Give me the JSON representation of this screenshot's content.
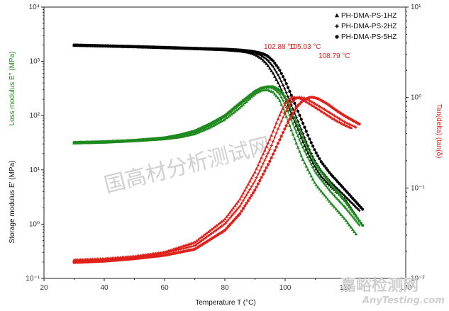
{
  "chart_data": {
    "type": "scatter",
    "xlabel": "Temperature T (°C)",
    "ylabel_left_top": "Loss modulus E'' (MPa)",
    "ylabel_left_bottom": "Storage modulus E' (MPa)",
    "ylabel_right": "Tan(delta) (tan(δ)",
    "xlim": [
      20,
      140
    ],
    "xticks": [
      "20",
      "40",
      "60",
      "80",
      "100",
      "120",
      "140"
    ],
    "ylim_left": [
      0.1,
      10000
    ],
    "ylim_left_log": true,
    "yticks_left": [
      "10⁻¹",
      "10⁰",
      "10¹",
      "10²",
      "10³",
      "10⁴"
    ],
    "ylim_right": [
      0.01,
      10
    ],
    "ylim_right_log": true,
    "yticks_right": [
      "10⁻²",
      "10⁻¹",
      "10⁰",
      "10¹"
    ],
    "legend_position": "top-right",
    "legend": [
      {
        "name": "PH-DMA-PS-1HZ",
        "marker": "triangle-up"
      },
      {
        "name": "PH-DMA-PS-2HZ",
        "marker": "star"
      },
      {
        "name": "PH-DMA-PS-5HZ",
        "marker": "circle"
      }
    ],
    "colors": {
      "storage": "#000000",
      "loss": "#1e8a1e",
      "tan": "#e0201a"
    },
    "annotations": [
      "102.88 °C",
      "105.03 °C",
      "108.79 °C"
    ],
    "annotation_values": [
      102.88,
      105.03,
      108.79
    ],
    "series": [
      {
        "name": "PH-DMA-PS-1HZ",
        "quantity": "storage",
        "axis": "left",
        "x": [
          30,
          40,
          50,
          60,
          70,
          80,
          85,
          88,
          90,
          92,
          94,
          96,
          98,
          100,
          102,
          104,
          106,
          108,
          110,
          112,
          115,
          120,
          124
        ],
        "y": [
          1960,
          1900,
          1840,
          1770,
          1700,
          1620,
          1540,
          1450,
          1330,
          1140,
          880,
          600,
          370,
          210,
          110,
          60,
          32,
          18,
          11,
          7.5,
          5,
          2.8,
          1.3
        ]
      },
      {
        "name": "PH-DMA-PS-2HZ",
        "quantity": "storage",
        "axis": "left",
        "x": [
          30,
          40,
          50,
          60,
          70,
          80,
          85,
          88,
          90,
          92,
          94,
          96,
          98,
          100,
          102,
          104,
          106,
          108,
          110,
          112,
          115,
          120,
          125
        ],
        "y": [
          1980,
          1920,
          1860,
          1790,
          1720,
          1650,
          1580,
          1500,
          1420,
          1290,
          1080,
          800,
          520,
          300,
          160,
          85,
          45,
          24,
          14,
          9.5,
          6,
          3.2,
          1.7
        ]
      },
      {
        "name": "PH-DMA-PS-5HZ",
        "quantity": "storage",
        "axis": "left",
        "x": [
          30,
          40,
          50,
          60,
          70,
          80,
          85,
          88,
          90,
          92,
          94,
          96,
          98,
          100,
          102,
          104,
          106,
          108,
          110,
          112,
          115,
          120,
          126
        ],
        "y": [
          2000,
          1940,
          1880,
          1810,
          1740,
          1680,
          1620,
          1560,
          1500,
          1420,
          1280,
          1020,
          720,
          440,
          240,
          130,
          70,
          38,
          22,
          14,
          8.5,
          4.2,
          1.8
        ]
      },
      {
        "name": "PH-DMA-PS-1HZ",
        "quantity": "loss",
        "axis": "left",
        "x": [
          30,
          40,
          50,
          60,
          65,
          70,
          75,
          80,
          85,
          88,
          90,
          92,
          94,
          96,
          98,
          100,
          102,
          104,
          106,
          108,
          110,
          115,
          120,
          124
        ],
        "y": [
          31,
          32,
          34,
          37,
          40,
          46,
          60,
          85,
          140,
          200,
          250,
          290,
          300,
          270,
          200,
          110,
          55,
          28,
          15,
          9,
          5.5,
          2.5,
          1.2,
          0.6
        ]
      },
      {
        "name": "PH-DMA-PS-2HZ",
        "quantity": "loss",
        "axis": "left",
        "x": [
          30,
          40,
          50,
          60,
          65,
          70,
          75,
          80,
          85,
          88,
          90,
          92,
          94,
          96,
          98,
          100,
          102,
          104,
          106,
          108,
          110,
          115,
          120,
          125
        ],
        "y": [
          32,
          33,
          35,
          38,
          42,
          49,
          65,
          95,
          160,
          220,
          275,
          310,
          330,
          320,
          260,
          160,
          85,
          45,
          25,
          15,
          9,
          4,
          2,
          0.9
        ]
      },
      {
        "name": "PH-DMA-PS-5HZ",
        "quantity": "loss",
        "axis": "left",
        "x": [
          30,
          40,
          50,
          60,
          65,
          70,
          75,
          80,
          85,
          88,
          90,
          92,
          94,
          96,
          98,
          100,
          102,
          104,
          106,
          108,
          110,
          115,
          120,
          126
        ],
        "y": [
          32,
          33,
          35,
          39,
          44,
          52,
          70,
          100,
          170,
          230,
          280,
          320,
          340,
          340,
          300,
          220,
          130,
          70,
          38,
          22,
          13,
          5.5,
          2.6,
          0.9
        ]
      },
      {
        "name": "PH-DMA-PS-1HZ",
        "quantity": "tan",
        "axis": "right",
        "x": [
          30,
          40,
          50,
          60,
          70,
          80,
          85,
          90,
          95,
          98,
          100,
          102,
          103,
          105,
          107,
          110,
          113,
          116,
          119,
          122
        ],
        "y": [
          0.016,
          0.0165,
          0.0175,
          0.0195,
          0.025,
          0.045,
          0.075,
          0.15,
          0.35,
          0.62,
          0.85,
          1.0,
          1.01,
          0.98,
          0.9,
          0.78,
          0.67,
          0.58,
          0.51,
          0.46
        ]
      },
      {
        "name": "PH-DMA-PS-2HZ",
        "quantity": "tan",
        "axis": "right",
        "x": [
          30,
          40,
          50,
          60,
          70,
          80,
          85,
          90,
          95,
          98,
          100,
          102,
          104,
          105,
          107,
          110,
          113,
          116,
          120,
          124
        ],
        "y": [
          0.0155,
          0.016,
          0.017,
          0.019,
          0.023,
          0.04,
          0.063,
          0.12,
          0.27,
          0.48,
          0.68,
          0.88,
          1.0,
          1.01,
          0.97,
          0.85,
          0.74,
          0.64,
          0.53,
          0.46
        ]
      },
      {
        "name": "PH-DMA-PS-5HZ",
        "quantity": "tan",
        "axis": "right",
        "x": [
          30,
          40,
          50,
          60,
          70,
          80,
          85,
          90,
          95,
          98,
          100,
          102,
          104,
          106,
          108,
          109,
          111,
          114,
          117,
          120,
          125
        ],
        "y": [
          0.015,
          0.0155,
          0.0165,
          0.018,
          0.021,
          0.034,
          0.052,
          0.095,
          0.2,
          0.33,
          0.46,
          0.62,
          0.8,
          0.93,
          1.0,
          1.01,
          0.97,
          0.85,
          0.72,
          0.62,
          0.5
        ]
      }
    ]
  },
  "watermark": {
    "text": "国高材分析测试网"
  },
  "brand": {
    "chinese": "嘉峪检测网",
    "english": "AnyTesting.com"
  }
}
